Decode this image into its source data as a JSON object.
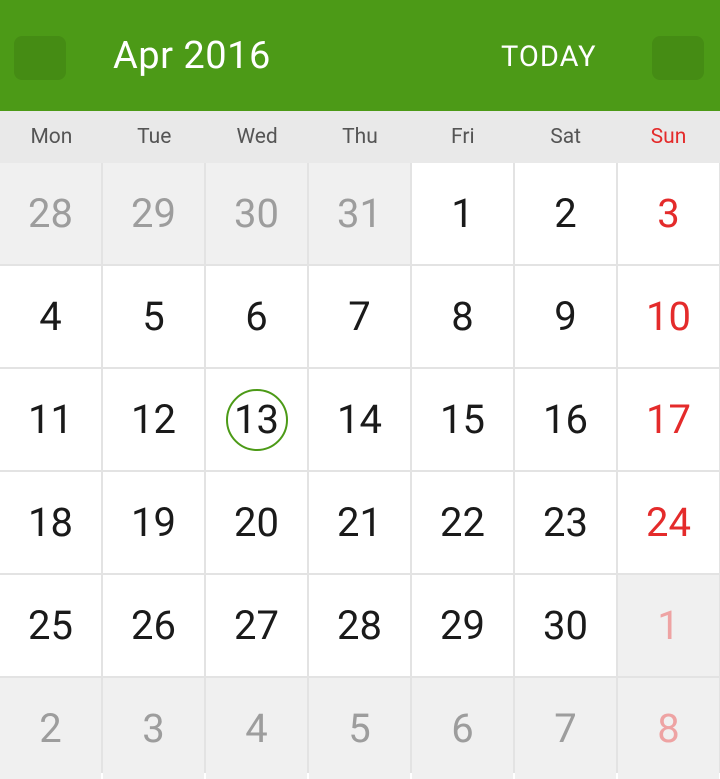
{
  "header": {
    "month_label": "Apr 2016",
    "today_label": "TODAY",
    "accent_color": "#4c9a17"
  },
  "weekdays": [
    "Mon",
    "Tue",
    "Wed",
    "Thu",
    "Fri",
    "Sat",
    "Sun"
  ],
  "weeks": [
    [
      {
        "d": "28",
        "other": true
      },
      {
        "d": "29",
        "other": true
      },
      {
        "d": "30",
        "other": true
      },
      {
        "d": "31",
        "other": true
      },
      {
        "d": "1"
      },
      {
        "d": "2"
      },
      {
        "d": "3"
      }
    ],
    [
      {
        "d": "4"
      },
      {
        "d": "5"
      },
      {
        "d": "6"
      },
      {
        "d": "7"
      },
      {
        "d": "8"
      },
      {
        "d": "9"
      },
      {
        "d": "10"
      }
    ],
    [
      {
        "d": "11"
      },
      {
        "d": "12"
      },
      {
        "d": "13",
        "today": true
      },
      {
        "d": "14"
      },
      {
        "d": "15"
      },
      {
        "d": "16"
      },
      {
        "d": "17"
      }
    ],
    [
      {
        "d": "18"
      },
      {
        "d": "19"
      },
      {
        "d": "20"
      },
      {
        "d": "21"
      },
      {
        "d": "22"
      },
      {
        "d": "23"
      },
      {
        "d": "24"
      }
    ],
    [
      {
        "d": "25"
      },
      {
        "d": "26"
      },
      {
        "d": "27"
      },
      {
        "d": "28"
      },
      {
        "d": "29"
      },
      {
        "d": "30"
      },
      {
        "d": "1",
        "other": true
      }
    ],
    [
      {
        "d": "2",
        "other": true
      },
      {
        "d": "3",
        "other": true
      },
      {
        "d": "4",
        "other": true
      },
      {
        "d": "5",
        "other": true
      },
      {
        "d": "6",
        "other": true
      },
      {
        "d": "7",
        "other": true
      },
      {
        "d": "8",
        "other": true
      }
    ]
  ]
}
